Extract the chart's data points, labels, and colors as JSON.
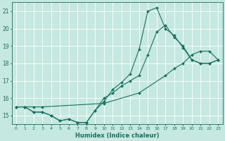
{
  "xlabel": "Humidex (Indice chaleur)",
  "xlim": [
    -0.5,
    23.5
  ],
  "ylim": [
    14.5,
    21.5
  ],
  "yticks": [
    15,
    16,
    17,
    18,
    19,
    20,
    21
  ],
  "xticks": [
    0,
    1,
    2,
    3,
    4,
    5,
    6,
    7,
    8,
    9,
    10,
    11,
    12,
    13,
    14,
    15,
    16,
    17,
    18,
    19,
    20,
    21,
    22,
    23
  ],
  "bg_color": "#c5e8e0",
  "grid_color": "#b0d8ce",
  "line_color": "#1a7060",
  "line1_x": [
    0,
    1,
    2,
    3,
    4,
    5,
    6,
    7,
    8,
    9,
    10,
    11,
    12,
    13,
    14,
    15,
    16,
    17,
    18,
    19,
    20,
    21,
    22,
    23
  ],
  "line1_y": [
    15.5,
    15.5,
    15.2,
    15.2,
    15.0,
    14.7,
    14.8,
    14.6,
    14.6,
    15.3,
    16.0,
    16.3,
    16.7,
    17.0,
    17.3,
    18.5,
    19.8,
    20.2,
    19.5,
    19.0,
    18.2,
    18.0,
    18.0,
    18.2
  ],
  "line2_x": [
    0,
    1,
    2,
    3,
    4,
    5,
    6,
    7,
    8,
    9,
    10,
    11,
    12,
    13,
    14,
    15,
    16,
    17,
    18,
    19,
    20,
    21,
    22,
    23
  ],
  "line2_y": [
    15.5,
    15.5,
    15.2,
    15.2,
    15.0,
    14.7,
    14.8,
    14.6,
    14.6,
    15.3,
    15.8,
    16.5,
    16.9,
    17.4,
    18.8,
    21.0,
    21.2,
    20.0,
    19.6,
    18.9,
    18.2,
    18.0,
    18.0,
    18.2
  ],
  "line3_x": [
    0,
    1,
    2,
    3,
    10,
    14,
    17,
    18,
    19,
    20,
    21,
    22,
    23
  ],
  "line3_y": [
    15.5,
    15.5,
    15.5,
    15.5,
    15.7,
    16.3,
    17.3,
    17.7,
    18.0,
    18.5,
    18.7,
    18.7,
    18.2
  ]
}
